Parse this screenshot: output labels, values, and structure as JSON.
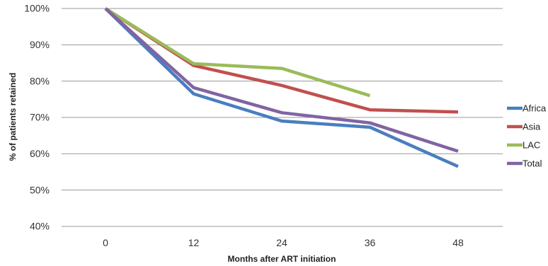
{
  "chart_data": {
    "type": "line",
    "title": "",
    "xlabel": "Months after ART initiation",
    "ylabel": "% of patients retained",
    "categories": [
      "0",
      "12",
      "24",
      "36",
      "48"
    ],
    "x": [
      0,
      12,
      24,
      36,
      48
    ],
    "y_ticks": [
      "40%",
      "50%",
      "60%",
      "70%",
      "80%",
      "90%",
      "100%"
    ],
    "ylim": [
      40,
      100
    ],
    "grid": true,
    "legend_position": "right",
    "series": [
      {
        "name": "Africa",
        "color": "#4a7ebf",
        "values": [
          100,
          76.5,
          69,
          67.3,
          56.5
        ]
      },
      {
        "name": "Asia",
        "color": "#c0504d",
        "values": [
          100,
          84.3,
          78.8,
          72.1,
          71.5
        ]
      },
      {
        "name": "LAC",
        "color": "#9bbb59",
        "values": [
          100,
          84.8,
          83.5,
          76,
          null
        ]
      },
      {
        "name": "Total",
        "color": "#8064a2",
        "values": [
          100,
          78.2,
          71.3,
          68.5,
          60.7
        ]
      }
    ]
  }
}
